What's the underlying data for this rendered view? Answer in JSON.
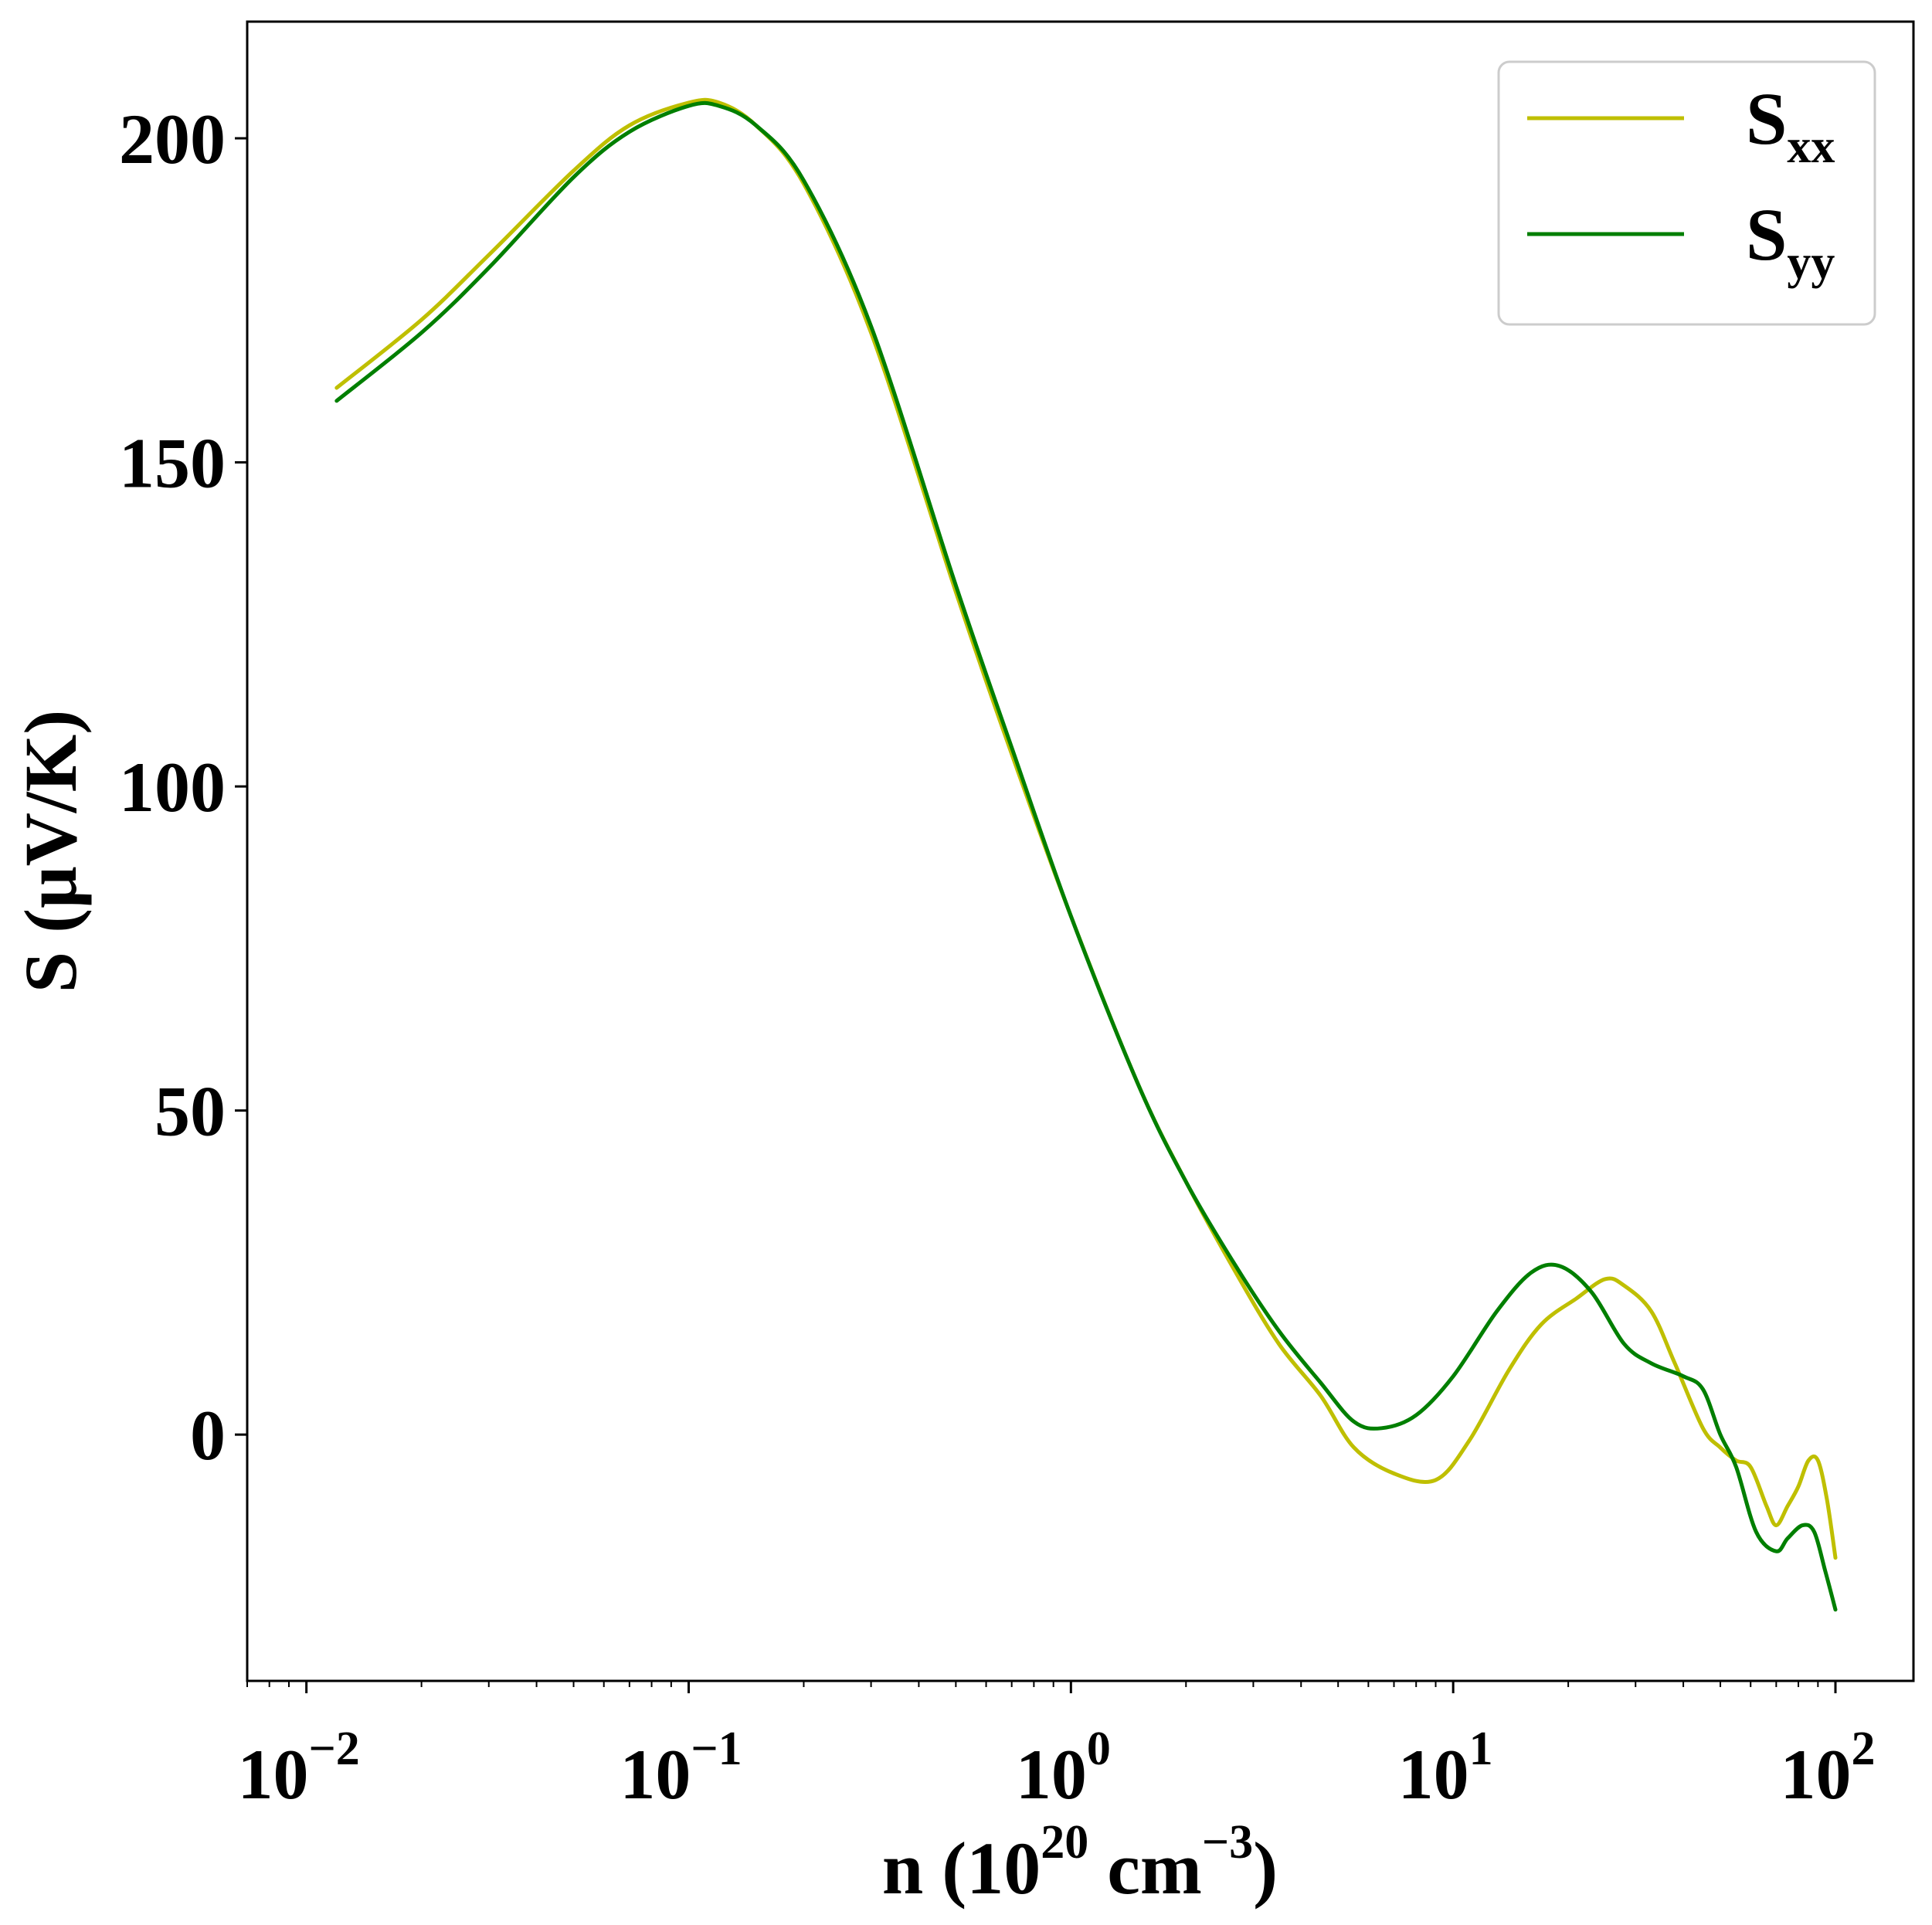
{
  "chart_data": {
    "type": "line",
    "xscale": "log",
    "xlim": [
      0.007,
      160
    ],
    "ylim": [
      -38,
      218
    ],
    "grid": false,
    "legend_position": "upper right",
    "xlabel": {
      "main": "n (10",
      "sup1": "20",
      "mid": " cm",
      "sup2": "−3",
      "end": ")"
    },
    "ylabel": "S (μV/K)",
    "y_ticks": [
      0,
      50,
      100,
      150,
      200
    ],
    "y_tick_labels": [
      "0",
      "50",
      "100",
      "150",
      "200"
    ],
    "x_ticks": [
      0.01,
      0.1,
      1,
      10,
      100
    ],
    "x_tick_labels": [
      {
        "base": "10",
        "exp": "−2"
      },
      {
        "base": "10",
        "exp": "−1"
      },
      {
        "base": "10",
        "exp": "0"
      },
      {
        "base": "10",
        "exp": "1"
      },
      {
        "base": "10",
        "exp": "2"
      }
    ],
    "series": [
      {
        "name": {
          "base": "S",
          "sub": "xx"
        },
        "color": "#bfbf00",
        "points": [
          [
            0.012,
            161.5
          ],
          [
            0.02,
            172
          ],
          [
            0.03,
            182
          ],
          [
            0.05,
            195
          ],
          [
            0.07,
            202
          ],
          [
            0.1,
            205.5
          ],
          [
            0.12,
            205.5
          ],
          [
            0.15,
            202
          ],
          [
            0.2,
            193
          ],
          [
            0.3,
            170
          ],
          [
            0.5,
            130
          ],
          [
            0.7,
            105
          ],
          [
            1,
            80
          ],
          [
            1.5,
            54
          ],
          [
            2,
            39
          ],
          [
            2.7,
            25
          ],
          [
            3.5,
            14
          ],
          [
            4.5,
            6
          ],
          [
            5.5,
            -2
          ],
          [
            7,
            -6
          ],
          [
            9,
            -7
          ],
          [
            11,
            -1
          ],
          [
            14,
            10
          ],
          [
            17,
            17
          ],
          [
            21,
            21
          ],
          [
            25,
            24
          ],
          [
            28,
            23
          ],
          [
            33,
            19
          ],
          [
            38,
            11
          ],
          [
            45,
            1
          ],
          [
            50,
            -2
          ],
          [
            55,
            -4
          ],
          [
            60,
            -5
          ],
          [
            66,
            -11
          ],
          [
            70,
            -14
          ],
          [
            75,
            -11
          ],
          [
            80,
            -8
          ],
          [
            85,
            -4
          ],
          [
            90,
            -4
          ],
          [
            95,
            -10
          ],
          [
            100,
            -19
          ]
        ]
      },
      {
        "name": {
          "base": "S",
          "sub": "yy"
        },
        "color": "#007f00",
        "points": [
          [
            0.012,
            159.5
          ],
          [
            0.02,
            170
          ],
          [
            0.03,
            180
          ],
          [
            0.05,
            194
          ],
          [
            0.07,
            201
          ],
          [
            0.1,
            205
          ],
          [
            0.12,
            205
          ],
          [
            0.15,
            202
          ],
          [
            0.2,
            193.5
          ],
          [
            0.3,
            171
          ],
          [
            0.5,
            131
          ],
          [
            0.7,
            106
          ],
          [
            1,
            80
          ],
          [
            1.5,
            54
          ],
          [
            2,
            39
          ],
          [
            2.7,
            26
          ],
          [
            3.5,
            16
          ],
          [
            4.5,
            8
          ],
          [
            5.5,
            2
          ],
          [
            6.5,
            1
          ],
          [
            8,
            3
          ],
          [
            10,
            9
          ],
          [
            13,
            19
          ],
          [
            16,
            25
          ],
          [
            19,
            26
          ],
          [
            23,
            22
          ],
          [
            28,
            14
          ],
          [
            33,
            11
          ],
          [
            40,
            9
          ],
          [
            45,
            7
          ],
          [
            50,
            0
          ],
          [
            55,
            -5
          ],
          [
            62,
            -15
          ],
          [
            70,
            -18
          ],
          [
            75,
            -16
          ],
          [
            82,
            -14
          ],
          [
            88,
            -15
          ],
          [
            94,
            -21
          ],
          [
            100,
            -27
          ]
        ]
      }
    ]
  }
}
